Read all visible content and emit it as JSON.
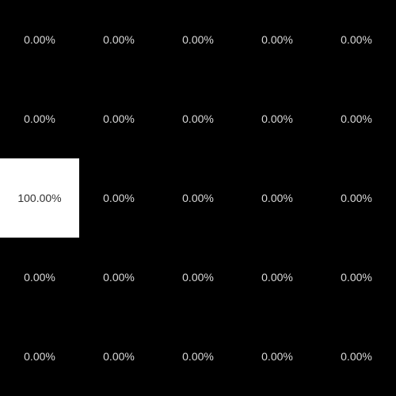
{
  "chart_data": {
    "type": "heatmap",
    "title": "",
    "xlabel": "",
    "ylabel": "",
    "rows": 5,
    "cols": 5,
    "values": [
      [
        0,
        0,
        0,
        0,
        0
      ],
      [
        0,
        0,
        0,
        0,
        0
      ],
      [
        100,
        0,
        0,
        0,
        0
      ],
      [
        0,
        0,
        0,
        0,
        0
      ],
      [
        0,
        0,
        0,
        0,
        0
      ]
    ],
    "labels": [
      [
        "0.00%",
        "0.00%",
        "0.00%",
        "0.00%",
        "0.00%"
      ],
      [
        "0.00%",
        "0.00%",
        "0.00%",
        "0.00%",
        "0.00%"
      ],
      [
        "100.00%",
        "0.00%",
        "0.00%",
        "0.00%",
        "0.00%"
      ],
      [
        "0.00%",
        "0.00%",
        "0.00%",
        "0.00%",
        "0.00%"
      ],
      [
        "0.00%",
        "0.00%",
        "0.00%",
        "0.00%",
        "0.00%"
      ]
    ],
    "value_range": [
      0,
      100
    ],
    "colorscale": {
      "low": "#000000",
      "high": "#ffffff"
    },
    "label_colors": {
      "on_dark": "#d9d9d9",
      "on_light": "#333333"
    },
    "grid": false,
    "legend": "none"
  }
}
